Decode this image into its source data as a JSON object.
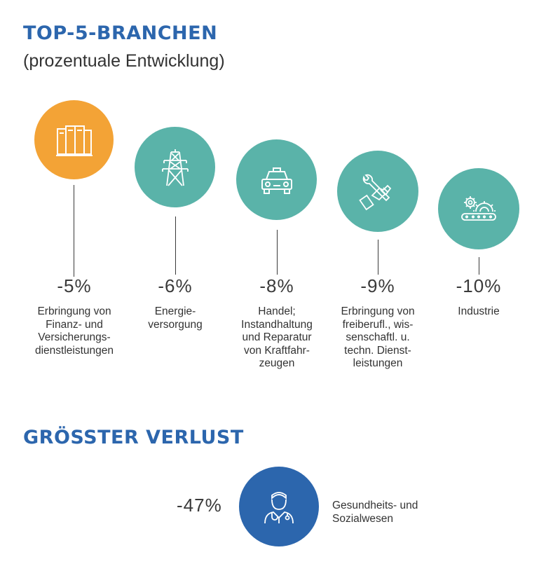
{
  "header": {
    "title": "TOP-5-BRANCHEN",
    "subtitle": "(prozentuale Entwicklung)"
  },
  "branches": [
    {
      "percent": "-5%",
      "label": "Erbringung von\nFinanz- und\nVersicherungs-\ndienstleistungen",
      "icon": "books-icon",
      "color": "#f3a336"
    },
    {
      "percent": "-6%",
      "label": "Energie-\nversorgung",
      "icon": "power-pylon-icon",
      "color": "#5ab3a9"
    },
    {
      "percent": "-8%",
      "label": "Handel;\nInstandhaltung\nund Reparatur\nvon Kraftfahr-\nzeugen",
      "icon": "car-icon",
      "color": "#5ab3a9"
    },
    {
      "percent": "-9%",
      "label": "Erbringung von\nfreiberufl., wis-\nsenschaftl. u.\ntechn. Dienst-\nleistungen",
      "icon": "wrench-hand-icon",
      "color": "#5ab3a9"
    },
    {
      "percent": "-10%",
      "label": "Industrie",
      "icon": "gears-conveyor-icon",
      "color": "#5ab3a9"
    }
  ],
  "loss": {
    "title": "GRÖSSTER VERLUST",
    "percent": "-47%",
    "label": "Gesundheits- und\nSozialwesen",
    "icon": "doctor-icon",
    "color": "#2c66ad"
  }
}
